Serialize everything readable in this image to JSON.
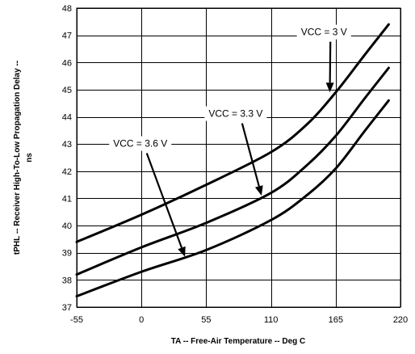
{
  "chart_data": {
    "type": "line",
    "xlabel": "TA -- Free-Air Temperature -- Deg C",
    "ylabel_line1": "tPHL -- Receiver High-To-Low Propagation Delay --",
    "ylabel_line2": "ns",
    "xlim": [
      -55,
      220
    ],
    "ylim": [
      37,
      48
    ],
    "x_ticks": [
      -55,
      0,
      55,
      110,
      165,
      220
    ],
    "y_ticks": [
      37,
      38,
      39,
      40,
      41,
      42,
      43,
      44,
      45,
      46,
      47,
      48
    ],
    "grid": true,
    "series": [
      {
        "name": "VCC = 3 V",
        "x": [
          -55,
          0,
          55,
          110,
          140,
          165,
          190,
          210
        ],
        "y": [
          39.4,
          40.4,
          41.5,
          42.7,
          43.7,
          44.9,
          46.3,
          47.4
        ]
      },
      {
        "name": "VCC = 3.3 V",
        "x": [
          -55,
          0,
          55,
          110,
          140,
          165,
          190,
          210
        ],
        "y": [
          38.2,
          39.2,
          40.1,
          41.2,
          42.2,
          43.3,
          44.7,
          45.8
        ]
      },
      {
        "name": "VCC = 3.6 V",
        "x": [
          -55,
          0,
          55,
          110,
          140,
          165,
          190,
          210
        ],
        "y": [
          37.4,
          38.3,
          39.1,
          40.2,
          41.1,
          42.1,
          43.5,
          44.6
        ]
      }
    ],
    "annotations": [
      {
        "text": "VCC = 3 V",
        "label_x": 155,
        "label_y": 47.0,
        "point_x": 160,
        "point_y": 44.9
      },
      {
        "text": "VCC = 3.3 V",
        "label_x": 80,
        "label_y": 44.0,
        "point_x": 102,
        "point_y": 41.1
      },
      {
        "text": "VCC = 3.6 V",
        "label_x": -1,
        "label_y": 42.9,
        "point_x": 37,
        "point_y": 38.85
      }
    ]
  }
}
